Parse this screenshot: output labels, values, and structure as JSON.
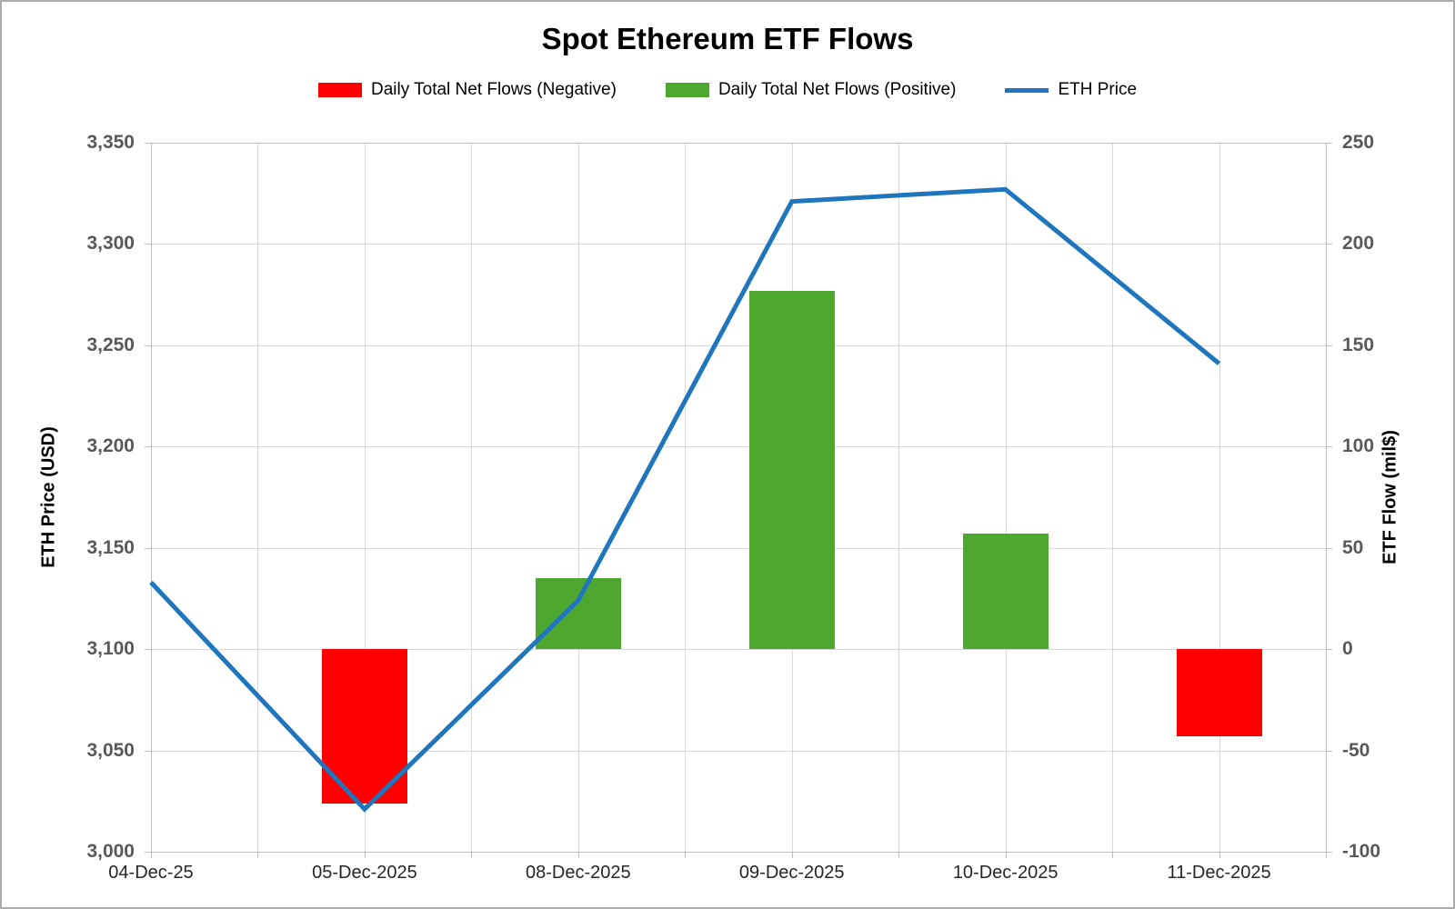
{
  "title": "Spot Ethereum ETF Flows",
  "legend": [
    {
      "label": "Daily Total Net Flows (Negative)",
      "color": "#ff0000",
      "marker": "swatch"
    },
    {
      "label": "Daily Total Net Flows (Positive)",
      "color": "#4ea72e",
      "marker": "swatch"
    },
    {
      "label": "ETH Price",
      "color": "#1f76bc",
      "marker": "line"
    }
  ],
  "chart_data": {
    "type": "combo",
    "categories": [
      "04-Dec-25",
      "05-Dec-2025",
      "08-Dec-2025",
      "09-Dec-2025",
      "10-Dec-2025",
      "11-Dec-2025"
    ],
    "series": [
      {
        "name": "Daily Total Net Flows",
        "type": "bar",
        "axis": "right",
        "values": [
          0,
          -76,
          35,
          177,
          57,
          -43
        ],
        "color_positive": "#4ea72e",
        "color_negative": "#ff0000"
      },
      {
        "name": "ETH Price",
        "type": "line",
        "axis": "left",
        "values": [
          3133,
          3021,
          3124,
          3321,
          3327,
          3241
        ],
        "color": "#1f76bc"
      }
    ],
    "left_axis": {
      "title": "ETH Price (USD)",
      "min": 3000,
      "max": 3350,
      "step": 50,
      "tick_labels": [
        "3,350",
        "3,300",
        "3,250",
        "3,200",
        "3,150",
        "3,100",
        "3,050",
        "3,000"
      ]
    },
    "right_axis": {
      "title": "ETF Flow (mil$)",
      "min": -100,
      "max": 250,
      "step": 50,
      "tick_labels": [
        "250",
        "200",
        "150",
        "100",
        "50",
        "0",
        "-50",
        "-100"
      ]
    },
    "grid": true,
    "legend_position": "top"
  },
  "colors": {
    "gridline": "#d9d9d9",
    "axis_line": "#bfbfbf",
    "y_tick_text": "#595959",
    "x_tick_text": "#262626",
    "outer_border": "#ababab"
  }
}
